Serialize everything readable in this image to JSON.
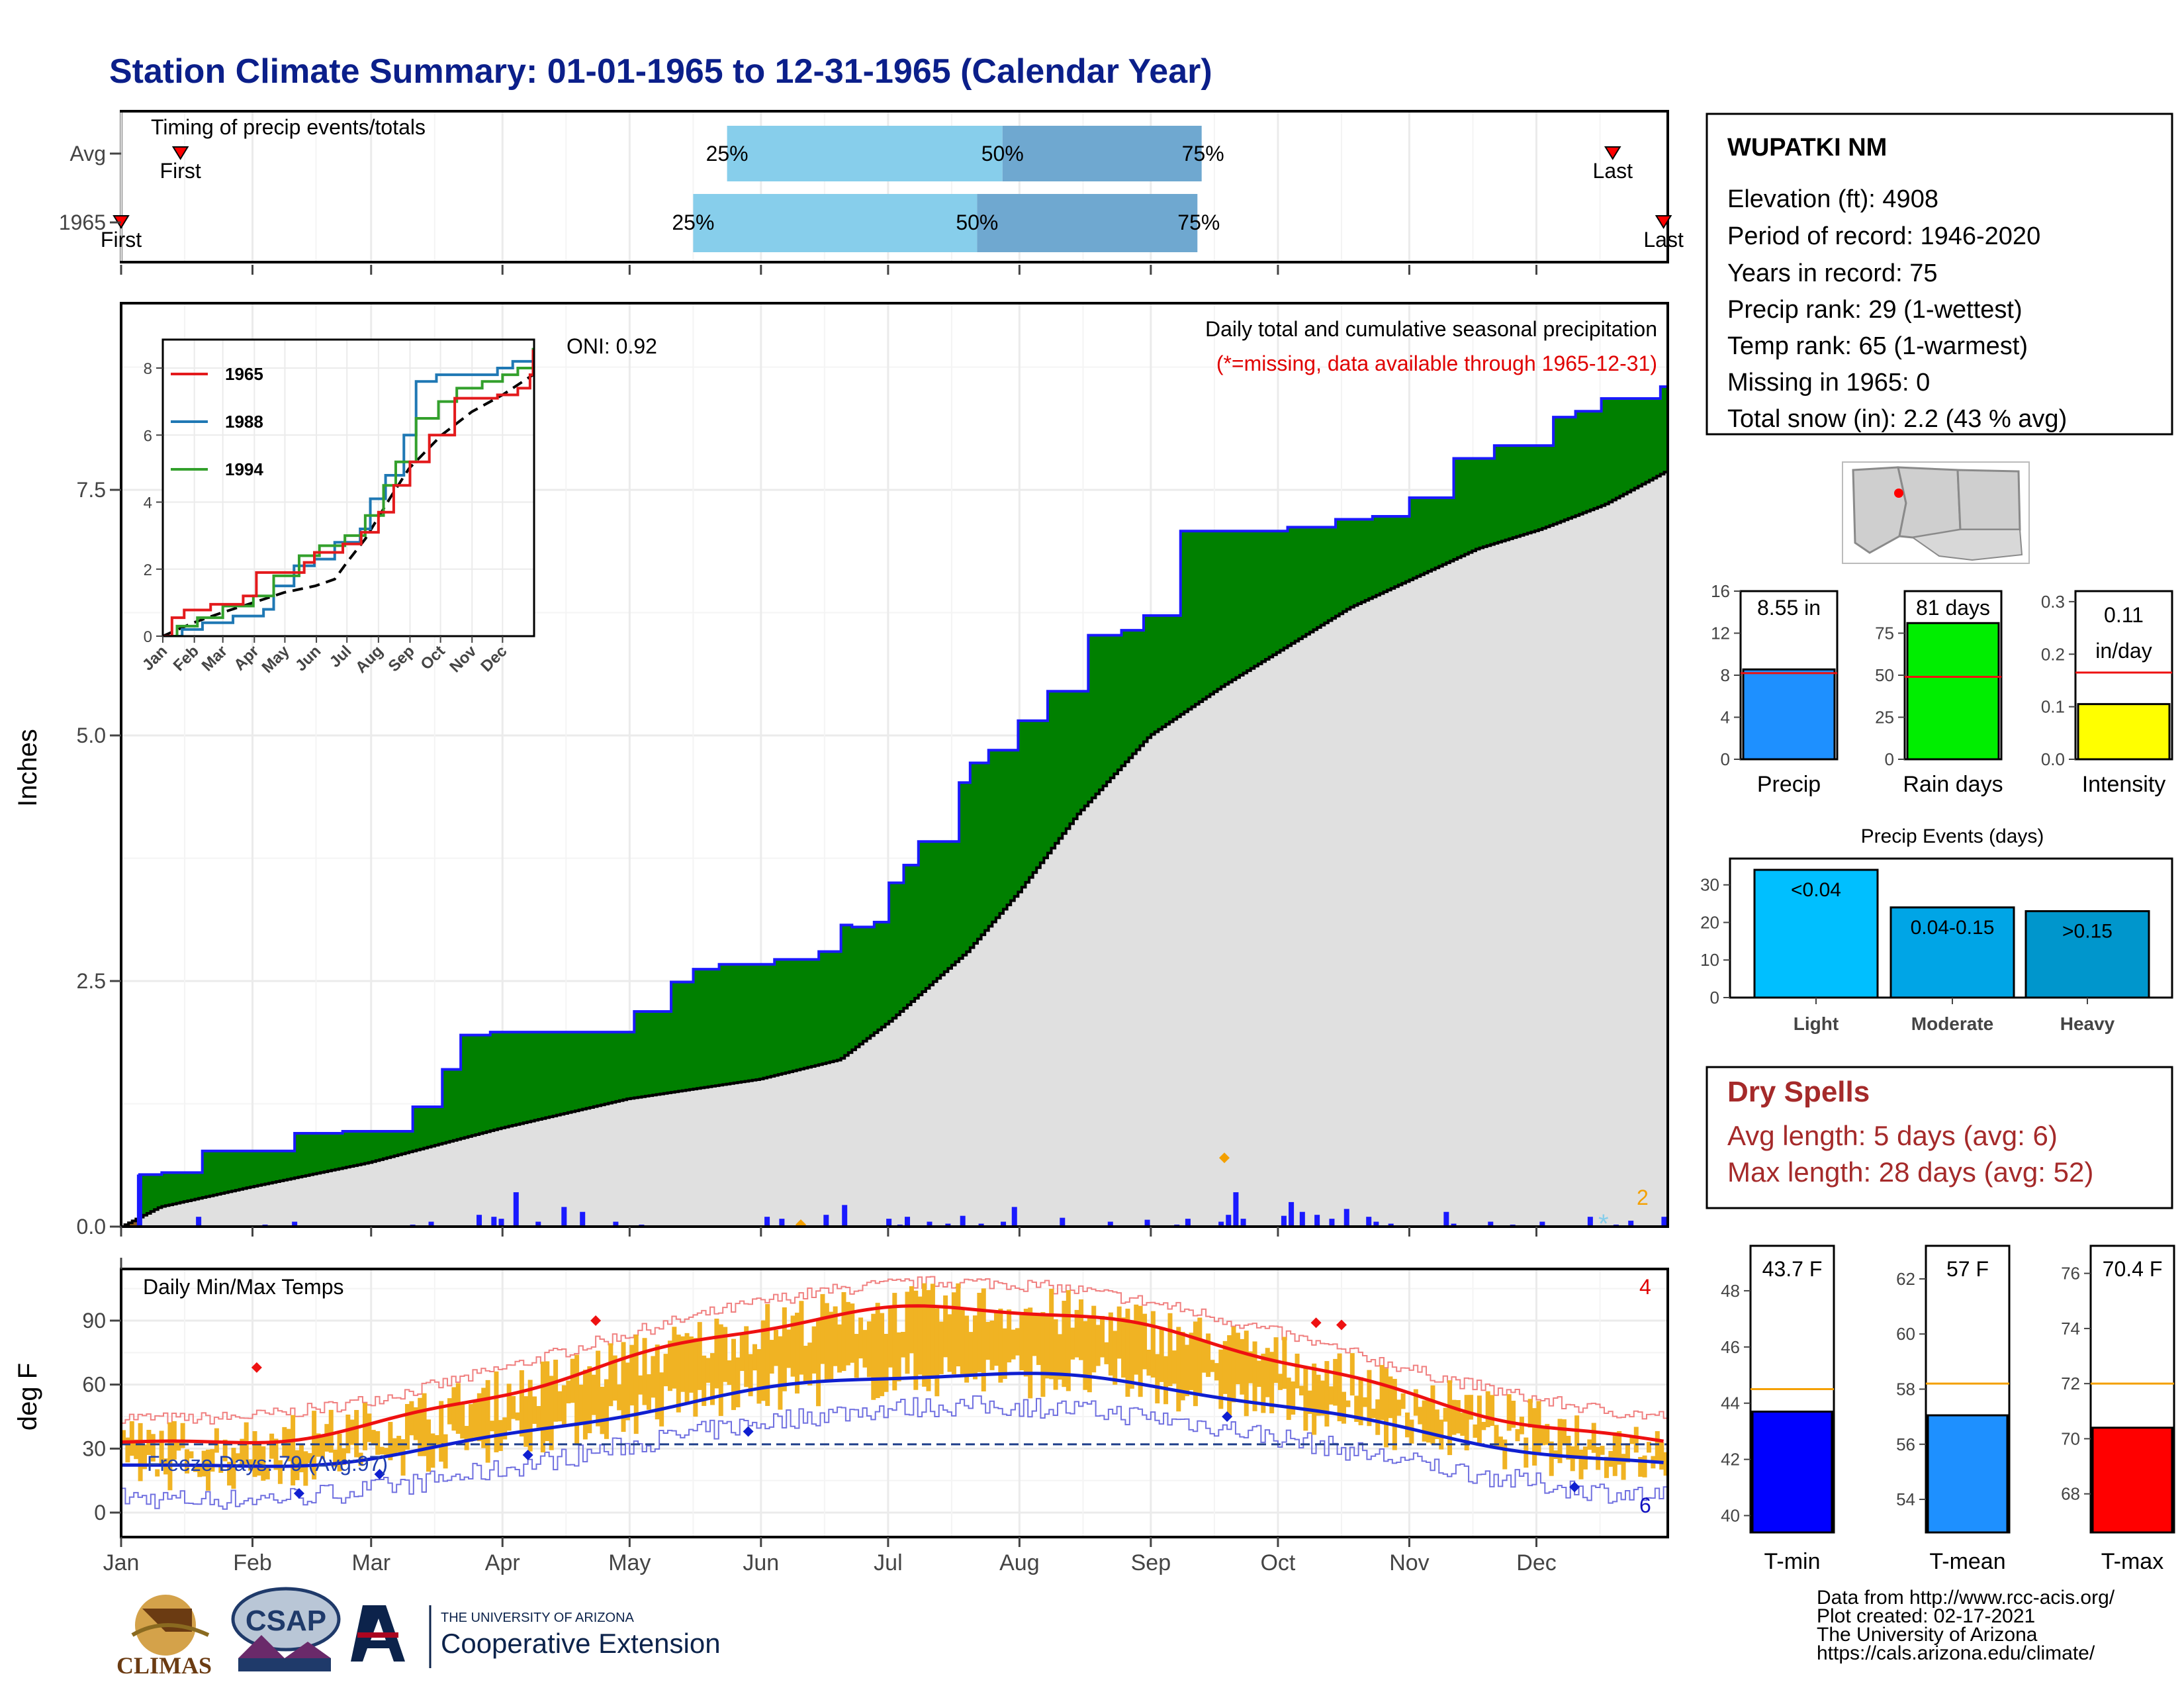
{
  "title": "Station Climate Summary: 01-01-1965 to 12-31-1965 (Calendar Year)",
  "colors": {
    "title": "#0b1f8a",
    "cum_fill": "#e0e0e0",
    "surplus": "#008000",
    "deficit": "#8b5a1e",
    "daily_bar": "#1a1aff",
    "cum_line": "#1a1aff",
    "temp_bar": "#f0b323",
    "tmax_line": "#ee1111",
    "tmin_line": "#0f1fd0",
    "dry_spells": "#a52a2a",
    "timing_light": "#87ceeb",
    "timing_dark": "#6fa8d0"
  },
  "timing": {
    "title": "Timing of precip events/totals",
    "rows": [
      {
        "label": "Avg",
        "first_doy": 15,
        "p25_doy": 144,
        "p50_doy": 209,
        "p75_doy": 256,
        "last_doy": 353,
        "first_label": "First",
        "last_label": "Last"
      },
      {
        "label": "1965",
        "first_doy": 1,
        "p25_doy": 136,
        "p50_doy": 203,
        "p75_doy": 255,
        "last_doy": 365,
        "first_label": "First",
        "last_label": "Last"
      }
    ],
    "pct_labels": [
      "25%",
      "50%",
      "75%"
    ]
  },
  "precip": {
    "ylabel": "Inches",
    "yticks": [
      "0.0",
      "2.5",
      "5.0",
      "7.5"
    ],
    "ymax": 9.4,
    "oni": "ONI: 0.92",
    "header": "Daily total and cumulative seasonal precipitation",
    "missing_note": "(*=missing, data available through 1965-12-31)",
    "snow_count": "2",
    "cumulative_steps": [
      [
        1,
        0.0
      ],
      [
        6,
        0.53
      ],
      [
        12,
        0.55
      ],
      [
        23,
        0.77
      ],
      [
        48,
        0.95
      ],
      [
        61,
        0.97
      ],
      [
        80,
        1.22
      ],
      [
        88,
        1.6
      ],
      [
        93,
        1.95
      ],
      [
        101,
        1.98
      ],
      [
        140,
        2.19
      ],
      [
        150,
        2.49
      ],
      [
        156,
        2.62
      ],
      [
        163,
        2.67
      ],
      [
        178,
        2.72
      ],
      [
        190,
        2.8
      ],
      [
        196,
        3.07
      ],
      [
        199,
        3.05
      ],
      [
        205,
        3.1
      ],
      [
        209,
        3.5
      ],
      [
        213,
        3.68
      ],
      [
        217,
        3.92
      ],
      [
        228,
        4.52
      ],
      [
        231,
        4.72
      ],
      [
        236,
        4.85
      ],
      [
        244,
        5.15
      ],
      [
        252,
        5.45
      ],
      [
        263,
        6.02
      ],
      [
        272,
        6.07
      ],
      [
        278,
        6.22
      ],
      [
        288,
        7.08
      ],
      [
        317,
        7.12
      ],
      [
        330,
        7.2
      ],
      [
        340,
        7.23
      ],
      [
        350,
        7.42
      ],
      [
        362,
        7.82
      ],
      [
        373,
        7.95
      ],
      [
        389,
        8.24
      ],
      [
        395,
        8.3
      ],
      [
        402,
        8.43
      ],
      [
        418,
        8.55
      ]
    ],
    "avg_cumulative": [
      [
        1,
        0.0
      ],
      [
        10,
        0.2
      ],
      [
        31,
        0.4
      ],
      [
        59,
        0.65
      ],
      [
        90,
        1.0
      ],
      [
        120,
        1.3
      ],
      [
        151,
        1.5
      ],
      [
        170,
        1.7
      ],
      [
        182,
        2.1
      ],
      [
        200,
        2.8
      ],
      [
        212,
        3.4
      ],
      [
        226,
        4.2
      ],
      [
        243,
        5.0
      ],
      [
        260,
        5.5
      ],
      [
        275,
        5.9
      ],
      [
        290,
        6.3
      ],
      [
        305,
        6.6
      ],
      [
        320,
        6.9
      ],
      [
        335,
        7.1
      ],
      [
        350,
        7.35
      ],
      [
        365,
        7.7
      ]
    ],
    "daily_bars": [
      [
        6,
        0.53
      ],
      [
        22,
        0.1
      ],
      [
        40,
        0.02
      ],
      [
        48,
        0.05
      ],
      [
        80,
        0.02
      ],
      [
        85,
        0.05
      ],
      [
        98,
        0.12
      ],
      [
        102,
        0.1
      ],
      [
        104,
        0.08
      ],
      [
        108,
        0.35
      ],
      [
        114,
        0.05
      ],
      [
        121,
        0.2
      ],
      [
        126,
        0.15
      ],
      [
        135,
        0.05
      ],
      [
        142,
        0.02
      ],
      [
        156,
        0.01
      ],
      [
        176,
        0.1
      ],
      [
        180,
        0.08
      ],
      [
        192,
        0.12
      ],
      [
        197,
        0.22
      ],
      [
        209,
        0.08
      ],
      [
        212,
        0.02
      ],
      [
        214,
        0.1
      ],
      [
        220,
        0.05
      ],
      [
        225,
        0.03
      ],
      [
        229,
        0.11
      ],
      [
        234,
        0.03
      ],
      [
        240,
        0.05
      ],
      [
        243,
        0.2
      ],
      [
        245,
        0.01
      ],
      [
        256,
        0.09
      ],
      [
        269,
        0.05
      ],
      [
        279,
        0.07
      ],
      [
        287,
        0.02
      ],
      [
        290,
        0.08
      ],
      [
        299,
        0.05
      ],
      [
        301,
        0.12
      ],
      [
        303,
        0.35
      ],
      [
        305,
        0.08
      ],
      [
        316,
        0.11
      ],
      [
        318,
        0.25
      ],
      [
        321,
        0.15
      ],
      [
        325,
        0.12
      ],
      [
        329,
        0.08
      ],
      [
        333,
        0.18
      ],
      [
        339,
        0.1
      ],
      [
        341,
        0.05
      ],
      [
        345,
        0.03
      ],
      [
        360,
        0.15
      ],
      [
        362,
        0.03
      ],
      [
        372,
        0.05
      ],
      [
        378,
        0.02
      ],
      [
        386,
        0.05
      ],
      [
        399,
        0.1
      ],
      [
        406,
        0.02
      ],
      [
        410,
        0.06
      ],
      [
        419,
        0.1
      ]
    ]
  },
  "inset": {
    "yticks": [
      "0",
      "2",
      "4",
      "6",
      "8"
    ],
    "xticks": [
      "Jan",
      "Feb",
      "Mar",
      "Apr",
      "May",
      "Jun",
      "Jul",
      "Aug",
      "Sep",
      "Oct",
      "Nov",
      "Dec"
    ],
    "legend": [
      {
        "name": "1965",
        "color": "#e31a1c"
      },
      {
        "name": "1988",
        "color": "#1f78b4"
      },
      {
        "name": "1994",
        "color": "#33a02c"
      }
    ],
    "series": {
      "1965": [
        [
          1,
          0
        ],
        [
          10,
          0.55
        ],
        [
          22,
          0.78
        ],
        [
          48,
          0.95
        ],
        [
          80,
          1.2
        ],
        [
          93,
          1.9
        ],
        [
          140,
          2.2
        ],
        [
          150,
          2.5
        ],
        [
          178,
          2.75
        ],
        [
          196,
          3.1
        ],
        [
          213,
          3.7
        ],
        [
          228,
          4.5
        ],
        [
          244,
          5.2
        ],
        [
          263,
          6.0
        ],
        [
          288,
          7.1
        ],
        [
          330,
          7.2
        ],
        [
          350,
          7.4
        ],
        [
          362,
          7.8
        ],
        [
          365,
          8.55
        ]
      ],
      "1988": [
        [
          1,
          0
        ],
        [
          20,
          0.2
        ],
        [
          40,
          0.4
        ],
        [
          70,
          0.6
        ],
        [
          100,
          0.8
        ],
        [
          110,
          1.5
        ],
        [
          130,
          2.1
        ],
        [
          150,
          2.3
        ],
        [
          170,
          2.8
        ],
        [
          195,
          3.2
        ],
        [
          205,
          4.1
        ],
        [
          220,
          4.8
        ],
        [
          238,
          6.0
        ],
        [
          250,
          7.6
        ],
        [
          270,
          7.8
        ],
        [
          300,
          7.8
        ],
        [
          330,
          8.0
        ],
        [
          345,
          8.2
        ],
        [
          365,
          8.4
        ]
      ],
      "1994": [
        [
          1,
          0
        ],
        [
          15,
          0.3
        ],
        [
          35,
          0.55
        ],
        [
          60,
          0.9
        ],
        [
          90,
          1.2
        ],
        [
          110,
          1.8
        ],
        [
          135,
          2.4
        ],
        [
          155,
          2.7
        ],
        [
          180,
          3.0
        ],
        [
          200,
          3.6
        ],
        [
          218,
          4.5
        ],
        [
          230,
          5.2
        ],
        [
          250,
          6.5
        ],
        [
          272,
          7.0
        ],
        [
          290,
          7.4
        ],
        [
          315,
          7.6
        ],
        [
          335,
          7.8
        ],
        [
          350,
          8.0
        ],
        [
          365,
          8.6
        ]
      ],
      "avg": [
        [
          1,
          0
        ],
        [
          31,
          0.4
        ],
        [
          59,
          0.7
        ],
        [
          90,
          1.0
        ],
        [
          120,
          1.3
        ],
        [
          151,
          1.5
        ],
        [
          170,
          1.7
        ],
        [
          182,
          2.2
        ],
        [
          200,
          2.9
        ],
        [
          226,
          4.2
        ],
        [
          243,
          5.0
        ],
        [
          275,
          6.0
        ],
        [
          305,
          6.7
        ],
        [
          335,
          7.2
        ],
        [
          365,
          7.8
        ]
      ]
    }
  },
  "temps": {
    "ylabel": "deg F",
    "title": "Daily Min/Max Temps",
    "yticks": [
      "0",
      "30",
      "60",
      "90"
    ],
    "freeze_text": "Freeze Days: 79 (Avg:97)",
    "freeze_line": 32,
    "record_high_count": "4",
    "record_low_count": "6"
  },
  "months": [
    "Jan",
    "Feb",
    "Mar",
    "Apr",
    "May",
    "Jun",
    "Jul",
    "Aug",
    "Sep",
    "Oct",
    "Nov",
    "Dec"
  ],
  "station": {
    "name": "WUPATKI NM",
    "lines": [
      "Elevation (ft): 4908",
      "Period of record: 1946-2020",
      "Years in record: 75",
      "Precip rank: 29 (1-wettest)",
      "Temp rank: 65 (1-warmest)",
      "Missing in 1965: 0",
      "Total snow (in): 2.2 (43 % avg)"
    ]
  },
  "summary_bars": [
    {
      "label": "Precip",
      "value_text": "8.55 in",
      "value": 8.55,
      "avg": 8.2,
      "ymax": 16,
      "yticks": [
        "0",
        "4",
        "8",
        "12",
        "16"
      ],
      "ytick_vals": [
        0,
        4,
        8,
        12,
        16
      ],
      "color": "#1e90ff"
    },
    {
      "label": "Rain days",
      "value_text": "81 days",
      "value": 81,
      "avg": 49,
      "ymax": 100,
      "yticks": [
        "0",
        "25",
        "50",
        "75"
      ],
      "ytick_vals": [
        0,
        25,
        50,
        75
      ],
      "color": "#00ee00"
    },
    {
      "label": "Intensity",
      "value_text": "0.11 in/day",
      "value_lines": [
        "0.11",
        "in/day"
      ],
      "value": 0.105,
      "avg": 0.165,
      "ymax": 0.32,
      "yticks": [
        "0.0",
        "0.1",
        "0.2",
        "0.3"
      ],
      "ytick_vals": [
        0,
        0.1,
        0.2,
        0.3
      ],
      "color": "#ffff00"
    }
  ],
  "events": {
    "title": "Precip Events (days)",
    "yticks": [
      "0",
      "10",
      "20",
      "30"
    ],
    "ytick_vals": [
      0,
      10,
      20,
      30
    ],
    "ymax": 37,
    "categories": [
      "Light",
      "Moderate",
      "Heavy"
    ],
    "range_labels": [
      "<0.04",
      "0.04-0.15",
      ">0.15"
    ],
    "values": [
      34,
      24,
      23
    ],
    "colors": [
      "#00bfff",
      "#00a5e6",
      "#0096cc"
    ]
  },
  "dry_spells": {
    "title": "Dry Spells",
    "avg_line": "Avg length: 5 days (avg: 6)",
    "max_line": "Max length: 28 days (avg: 52)"
  },
  "temp_bars": [
    {
      "label": "T-min",
      "value_text": "43.7 F",
      "value": 43.7,
      "avg": 44.5,
      "ymin": 39.4,
      "ymax": 49.6,
      "yticks": [
        "40",
        "42",
        "44",
        "46",
        "48"
      ],
      "ytick_vals": [
        40,
        42,
        44,
        46,
        48
      ],
      "color": "#0000ff"
    },
    {
      "label": "T-mean",
      "value_text": "57 F",
      "value": 57.05,
      "avg": 58.2,
      "ymin": 52.8,
      "ymax": 63.2,
      "yticks": [
        "54",
        "56",
        "58",
        "60",
        "62"
      ],
      "ytick_vals": [
        54,
        56,
        58,
        60,
        62
      ],
      "color": "#1e90ff"
    },
    {
      "label": "T-max",
      "value_text": "70.4 F",
      "value": 70.4,
      "avg": 72.0,
      "ymin": 66.6,
      "ymax": 77.0,
      "yticks": [
        "68",
        "70",
        "72",
        "74",
        "76"
      ],
      "ytick_vals": [
        68,
        70,
        72,
        74,
        76
      ],
      "color": "#ff0000"
    }
  ],
  "credits": [
    "Data from http://www.rcc-acis.org/",
    "Plot created: 02-17-2021",
    "The University of Arizona",
    "https://cals.arizona.edu/climate/"
  ],
  "logos": {
    "climas": "CLIMAS",
    "csap": "CSAP",
    "ua_small": "THE UNIVERSITY OF ARIZONA",
    "ua_big": "Cooperative Extension"
  }
}
